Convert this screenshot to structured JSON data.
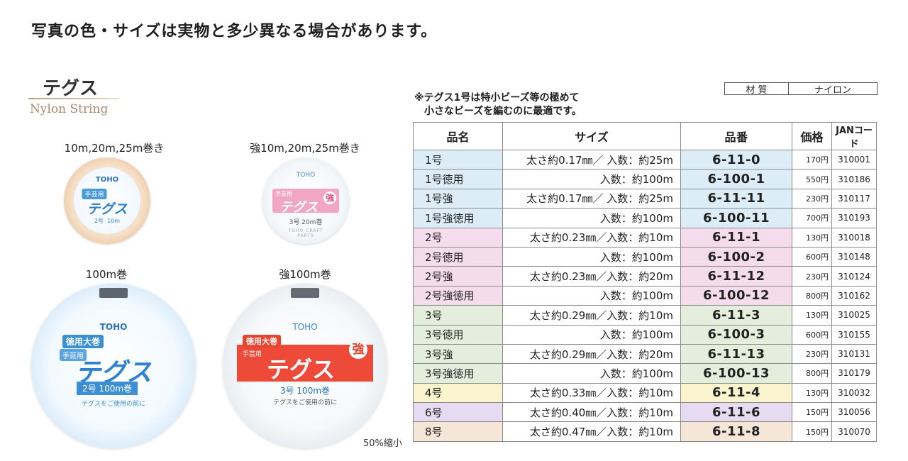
{
  "notice": "写真の色・サイズは実物と多少異なる場合があります。",
  "product": {
    "title": "テグス",
    "subtitle": "Nylon String"
  },
  "spools": {
    "small_normal": {
      "caption": "10m,20m,25m巻き",
      "brand": "TOHO",
      "tag": "手芸用",
      "name": "テグス",
      "spec": "2号  10m"
    },
    "small_strong": {
      "caption": "強10m,20m,25m巻き",
      "brand": "TOHO",
      "tag": "手芸用",
      "name": "テグス",
      "badge": "強",
      "spec": "3号 20m巻",
      "ring_text": "TOHO CRAFT PARTS"
    },
    "large_normal": {
      "caption": "100m巻",
      "brand": "TOHO",
      "tag": "徳用大巻",
      "tag2": "手芸用",
      "name": "テグス",
      "spec": "2号 100m巻",
      "warn": "テグスをご使用の前に"
    },
    "large_strong": {
      "caption": "強100m巻",
      "brand": "TOHO",
      "tag": "徳用大巻",
      "tag2": "手芸用",
      "name": "テグス",
      "badge": "強",
      "spec": "3号 100m巻",
      "warn": "テグスをご使用の前に"
    }
  },
  "scale_note": "50%縮小",
  "material": {
    "label": "材 質",
    "value": "ナイロン"
  },
  "note_lines": [
    "※テグス1号は特小ビーズ等の極めて",
    "　小さなビーズを編むのに最適です。"
  ],
  "table": {
    "headers": {
      "name": "品名",
      "size": "サイズ",
      "code": "品番",
      "price": "価格",
      "jan": "JANコード"
    },
    "rows": [
      {
        "name": "1号",
        "size": "太さ約0.17㎜／ 入数：約25m",
        "code": "6-11-0",
        "price": "170円",
        "jan": "310001",
        "color": "#dcedf7"
      },
      {
        "name": "1号徳用",
        "size": "入数：約100m",
        "code": "6-100-1",
        "price": "550円",
        "jan": "310186",
        "color": "#dcedf7"
      },
      {
        "name": "1号強",
        "size": "太さ約0.17㎜／ 入数：約25m",
        "code": "6-11-11",
        "price": "230円",
        "jan": "310117",
        "color": "#dcedf7"
      },
      {
        "name": "1号強徳用",
        "size": "入数：約100m",
        "code": "6-100-11",
        "price": "700円",
        "jan": "310193",
        "color": "#dcedf7"
      },
      {
        "name": "2号",
        "size": "太さ約0.23㎜／入数：約10m",
        "code": "6-11-1",
        "price": "130円",
        "jan": "310018",
        "color": "#f5dcec"
      },
      {
        "name": "2号徳用",
        "size": "入数：約100m",
        "code": "6-100-2",
        "price": "600円",
        "jan": "310148",
        "color": "#f5dcec"
      },
      {
        "name": "2号強",
        "size": "太さ約0.23㎜／入数：約20m",
        "code": "6-11-12",
        "price": "230円",
        "jan": "310124",
        "color": "#f5dcec"
      },
      {
        "name": "2号強徳用",
        "size": "入数：約100m",
        "code": "6-100-12",
        "price": "800円",
        "jan": "310162",
        "color": "#f5dcec"
      },
      {
        "name": "3号",
        "size": "太さ約0.29㎜／入数：約10m",
        "code": "6-11-3",
        "price": "130円",
        "jan": "310025",
        "color": "#e3efdc"
      },
      {
        "name": "3号徳用",
        "size": "入数：約100m",
        "code": "6-100-3",
        "price": "600円",
        "jan": "310155",
        "color": "#e3efdc"
      },
      {
        "name": "3号強",
        "size": "太さ約0.29㎜／入数：約20m",
        "code": "6-11-13",
        "price": "230円",
        "jan": "310131",
        "color": "#e3efdc"
      },
      {
        "name": "3号強徳用",
        "size": "入数：約100m",
        "code": "6-100-13",
        "price": "800円",
        "jan": "310179",
        "color": "#e3efdc"
      },
      {
        "name": "4号",
        "size": "太さ約0.33㎜／入数：約10m",
        "code": "6-11-4",
        "price": "130円",
        "jan": "310032",
        "color": "#fbf5cf"
      },
      {
        "name": "6号",
        "size": "太さ約0.40㎜／入数：約10m",
        "code": "6-11-6",
        "price": "150円",
        "jan": "310056",
        "color": "#e6dbf1"
      },
      {
        "name": "8号",
        "size": "太さ約0.47㎜／入数：約10m",
        "code": "6-11-8",
        "price": "150円",
        "jan": "310070",
        "color": "#f6e6d8"
      }
    ]
  }
}
